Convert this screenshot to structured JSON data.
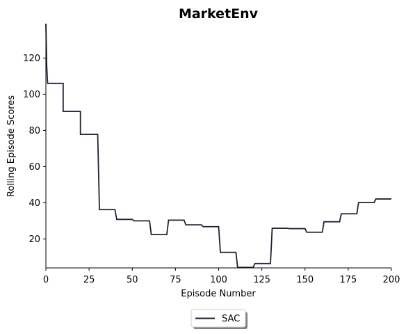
{
  "chart_data": {
    "type": "line",
    "title": "MarketEnv",
    "xlabel": "Episode Number",
    "ylabel": "Rolling Episode Scores",
    "xlim": [
      0,
      200
    ],
    "ylim": [
      4,
      139
    ],
    "xticks": [
      0,
      25,
      50,
      75,
      100,
      125,
      150,
      175,
      200
    ],
    "yticks": [
      20,
      40,
      60,
      80,
      100,
      120
    ],
    "grid": false,
    "legend_position": "bottom-center",
    "series": [
      {
        "name": "SAC",
        "color": "#1c2533",
        "x": [
          0,
          0.5,
          1,
          10,
          10,
          20,
          20,
          30,
          31,
          40,
          41,
          50,
          51,
          60,
          61,
          70,
          71,
          80,
          81,
          90,
          91,
          100,
          101,
          110,
          111,
          120,
          121,
          130,
          131,
          140,
          141,
          150,
          151,
          160,
          161,
          170,
          171,
          180,
          181,
          190,
          191,
          200
        ],
        "y": [
          139,
          115,
          106,
          106,
          90.5,
          90.5,
          77.8,
          77.8,
          36.2,
          36.2,
          30.8,
          30.8,
          30,
          30,
          22.4,
          22.4,
          30.4,
          30.4,
          27.8,
          27.8,
          26.8,
          26.8,
          12.6,
          12.6,
          4.3,
          4.3,
          6.4,
          6.4,
          25.9,
          25.9,
          25.7,
          25.7,
          23.7,
          23.7,
          29.5,
          29.5,
          33.9,
          33.9,
          40.1,
          40.1,
          42.1,
          42.1
        ]
      }
    ]
  }
}
